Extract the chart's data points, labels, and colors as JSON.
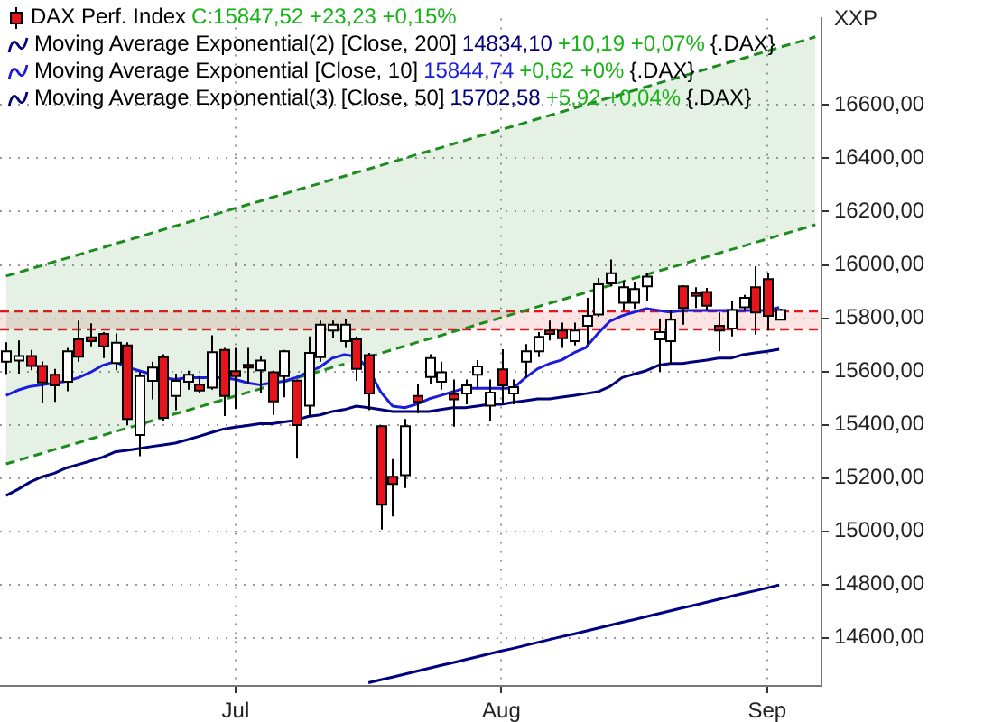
{
  "chart_data": {
    "type": "candlestick",
    "ylabel": "XXP",
    "categories": [
      null,
      null,
      null,
      null,
      null,
      null,
      null,
      null,
      null,
      null,
      null,
      null,
      null,
      null,
      null,
      null,
      null,
      null,
      null,
      "Jul",
      null,
      null,
      null,
      null,
      null,
      null,
      null,
      null,
      null,
      null,
      null,
      null,
      null,
      null,
      null,
      null,
      null,
      null,
      null,
      null,
      null,
      "Aug",
      null,
      null,
      null,
      null,
      null,
      null,
      null,
      null,
      null,
      null,
      null,
      null,
      null,
      null,
      null,
      null,
      null,
      null,
      null,
      null,
      null,
      "Sep",
      null,
      null,
      null,
      null
    ],
    "series": [
      {
        "type": "candlestick",
        "name": "DAX Perf. Index",
        "color": "#e8141c",
        "colors": [
          "#ffffff",
          "#ffffff",
          "#e8141c",
          "#e8141c",
          "#e8141c",
          "#ffffff",
          "#e8141c",
          "#e8141c",
          "#e8141c",
          "#ffffff",
          "#e8141c",
          "#ffffff",
          "#ffffff",
          "#e8141c",
          "#ffffff",
          "#ffffff",
          "#e8141c",
          "#ffffff",
          "#e8141c",
          "#e8141c",
          "#e8141c",
          "#ffffff",
          "#e8141c",
          "#ffffff",
          "#e8141c",
          "#ffffff",
          "#ffffff",
          "#ffffff",
          "#ffffff",
          "#e8141c",
          "#e8141c",
          "#e8141c",
          "#e8141c",
          "#ffffff",
          "#e8141c",
          "#ffffff",
          "#ffffff",
          "#e8141c",
          "#ffffff",
          "#ffffff",
          "#ffffff",
          "#e8141c",
          "#ffffff",
          "#ffffff",
          "#ffffff",
          "#e8141c",
          "#e8141c",
          "#ffffff",
          "#ffffff",
          "#ffffff",
          "#ffffff",
          "#ffffff",
          "#ffffff",
          "#ffffff",
          "#ffffff",
          "#ffffff",
          "#e8141c",
          "#e8141c",
          "#e8141c",
          "#e8141c",
          "#ffffff",
          "#ffffff",
          "#e8141c",
          "#e8141c",
          "#ffffff",
          null,
          null,
          null
        ],
        "ohlc": [
          [
            15637,
            15710,
            15590,
            15676
          ],
          [
            15641,
            15716,
            15592,
            15658
          ],
          [
            15658,
            15681,
            15605,
            15621
          ],
          [
            15621,
            15638,
            15482,
            15559
          ],
          [
            15588,
            15610,
            15486,
            15548
          ],
          [
            15561,
            15688,
            15526,
            15676
          ],
          [
            15721,
            15791,
            15637,
            15655
          ],
          [
            15728,
            15781,
            15694,
            15714
          ],
          [
            15741,
            15748,
            15650,
            15694
          ],
          [
            15632,
            15743,
            15605,
            15708
          ],
          [
            15698,
            15710,
            15399,
            15422
          ],
          [
            15362,
            15599,
            15282,
            15583
          ],
          [
            15565,
            15637,
            15495,
            15615
          ],
          [
            15654,
            15665,
            15415,
            15426
          ],
          [
            15508,
            15592,
            15455,
            15565
          ],
          [
            15561,
            15603,
            15532,
            15588
          ],
          [
            15550,
            15583,
            15521,
            15528
          ],
          [
            15539,
            15736,
            15532,
            15672
          ],
          [
            15681,
            15688,
            15433,
            15508
          ],
          [
            15601,
            15688,
            15459,
            15583
          ],
          [
            15625,
            15688,
            15555,
            15621
          ],
          [
            15605,
            15658,
            15517,
            15641
          ],
          [
            15597,
            15603,
            15437,
            15488
          ],
          [
            15583,
            15681,
            15503,
            15676
          ],
          [
            15566,
            15570,
            15273,
            15399
          ],
          [
            15472,
            15732,
            15433,
            15670
          ],
          [
            15654,
            15791,
            15637,
            15776
          ],
          [
            15754,
            15791,
            15725,
            15776
          ],
          [
            15714,
            15796,
            15688,
            15776
          ],
          [
            15721,
            15732,
            15565,
            15610
          ],
          [
            15661,
            15670,
            15455,
            15517
          ],
          [
            15395,
            15399,
            15007,
            15100
          ],
          [
            15205,
            15271,
            15056,
            15178
          ],
          [
            15211,
            15422,
            15163,
            15395
          ],
          [
            15508,
            15555,
            15444,
            15486
          ],
          [
            15579,
            15665,
            15555,
            15650
          ],
          [
            15561,
            15637,
            15532,
            15597
          ],
          [
            15515,
            15570,
            15393,
            15495
          ],
          [
            15517,
            15570,
            15477,
            15548
          ],
          [
            15588,
            15643,
            15539,
            15619
          ],
          [
            15472,
            15570,
            15415,
            15521
          ],
          [
            15608,
            15683,
            15477,
            15548
          ],
          [
            15517,
            15570,
            15477,
            15541
          ],
          [
            15637,
            15703,
            15577,
            15676
          ],
          [
            15676,
            15748,
            15654,
            15730
          ],
          [
            15754,
            15791,
            15716,
            15741
          ],
          [
            15754,
            15783,
            15688,
            15725
          ],
          [
            15714,
            15783,
            15698,
            15754
          ],
          [
            15771,
            15876,
            15703,
            15809
          ],
          [
            15814,
            15951,
            15805,
            15927
          ],
          [
            15931,
            16020,
            15920,
            15969
          ],
          [
            15858,
            15942,
            15831,
            15916
          ],
          [
            15858,
            15937,
            15836,
            15909
          ],
          [
            15920,
            15969,
            15864,
            15956
          ],
          [
            15721,
            15798,
            15599,
            15748
          ],
          [
            15714,
            15831,
            15628,
            15794
          ],
          [
            15920,
            15924,
            15776,
            15838
          ],
          [
            15894,
            15916,
            15838,
            15887
          ],
          [
            15898,
            15914,
            15831,
            15847
          ],
          [
            15771,
            15821,
            15676,
            15754
          ],
          [
            15761,
            15864,
            15732,
            15831
          ],
          [
            15841,
            15887,
            15831,
            15876
          ],
          [
            15916,
            15995,
            15738,
            15821
          ],
          [
            15947,
            15969,
            15754,
            15809
          ],
          [
            15794,
            15836,
            15792,
            15831
          ],
          null,
          null,
          null
        ]
      },
      {
        "type": "line",
        "name": "Moving Average Exponential(2) [Close, 200]",
        "color": "#000080",
        "values": [
          null,
          null,
          null,
          null,
          null,
          null,
          null,
          null,
          null,
          null,
          null,
          null,
          null,
          null,
          null,
          null,
          null,
          null,
          null,
          null,
          null,
          null,
          null,
          null,
          null,
          null,
          null,
          null,
          null,
          null,
          14432,
          14443,
          14453,
          14464,
          14475,
          14486,
          14497,
          14507,
          14518,
          14529,
          14540,
          14551,
          14561,
          14572,
          14583,
          14594,
          14605,
          14615,
          14626,
          14637,
          14648,
          14659,
          14669,
          14680,
          14691,
          14702,
          14713,
          14723,
          14734,
          14745,
          14756,
          14767,
          14777,
          14788,
          14799,
          null,
          null,
          null
        ]
      },
      {
        "type": "line",
        "name": "Moving Average Exponential [Close, 10]",
        "color": "#1c1ce0",
        "values": [
          15510,
          15530,
          15544,
          15550,
          15557,
          15563,
          15577,
          15597,
          15623,
          15637,
          15617,
          15603,
          15590,
          15577,
          15570,
          15577,
          15577,
          15577,
          15577,
          15570,
          15557,
          15550,
          15557,
          15563,
          15577,
          15597,
          15617,
          15650,
          15663,
          15656,
          15610,
          15524,
          15470,
          15464,
          15477,
          15497,
          15510,
          15524,
          15537,
          15537,
          15537,
          15537,
          15537,
          15577,
          15610,
          15630,
          15643,
          15670,
          15690,
          15743,
          15789,
          15809,
          15823,
          15836,
          15829,
          15823,
          15829,
          15829,
          15829,
          15829,
          15829,
          15829,
          15829,
          15829,
          15840,
          null,
          null,
          null
        ]
      },
      {
        "type": "line",
        "name": "Moving Average Exponential(3) [Close, 50]",
        "color": "#00007a",
        "values": [
          15134,
          15158,
          15185,
          15205,
          15218,
          15238,
          15251,
          15264,
          15278,
          15298,
          15304,
          15311,
          15318,
          15324,
          15331,
          15344,
          15357,
          15371,
          15384,
          15391,
          15397,
          15404,
          15404,
          15411,
          15417,
          15431,
          15437,
          15450,
          15457,
          15470,
          15464,
          15457,
          15450,
          15450,
          15450,
          15450,
          15457,
          15464,
          15464,
          15470,
          15477,
          15477,
          15484,
          15490,
          15497,
          15497,
          15504,
          15510,
          15517,
          15524,
          15544,
          15577,
          15590,
          15603,
          15623,
          15630,
          15630,
          15637,
          15643,
          15650,
          15650,
          15663,
          15670,
          15676,
          15683,
          null,
          null,
          null
        ]
      },
      {
        "type": "line",
        "color": "#1e8c1e",
        "line_style": "dashed",
        "lower": [
          15253,
          15266,
          15280,
          15293,
          15307,
          15320,
          15333,
          15347,
          15360,
          15374,
          15387,
          15400,
          15414,
          15427,
          15441,
          15454,
          15467,
          15481,
          15494,
          15508,
          15521,
          15534,
          15548,
          15561,
          15575,
          15588,
          15601,
          15615,
          15628,
          15642,
          15655,
          15668,
          15682,
          15695,
          15709,
          15722,
          15735,
          15749,
          15762,
          15776,
          15789,
          15802,
          15816,
          15829,
          15843,
          15856,
          15869,
          15883,
          15896,
          15910,
          15923,
          15936,
          15950,
          15963,
          15977,
          15990,
          16003,
          16017,
          16030,
          16044,
          16057,
          16070,
          16084,
          16097,
          16111,
          16124,
          16137,
          16151
        ],
        "upper": [
          15958,
          15971,
          15985,
          15998,
          16012,
          16025,
          16038,
          16052,
          16065,
          16079,
          16092,
          16105,
          16119,
          16132,
          16146,
          16159,
          16172,
          16186,
          16199,
          16213,
          16226,
          16239,
          16253,
          16266,
          16280,
          16293,
          16306,
          16320,
          16333,
          16347,
          16360,
          16373,
          16387,
          16400,
          16414,
          16427,
          16440,
          16454,
          16467,
          16481,
          16494,
          16507,
          16521,
          16534,
          16548,
          16561,
          16574,
          16588,
          16601,
          16615,
          16628,
          16641,
          16655,
          16668,
          16682,
          16695,
          16708,
          16722,
          16735,
          16749,
          16762,
          16775,
          16789,
          16802,
          16816,
          16829,
          16842,
          16856
        ],
        "values": [
          15958,
          15971,
          15985,
          15998,
          16012,
          16025,
          16038,
          16052,
          16065,
          16079,
          16092,
          16105,
          16119,
          16132,
          16146,
          16159,
          16172,
          16186,
          16199,
          16213,
          16226,
          16239,
          16253,
          16266,
          16280,
          16293,
          16306,
          16320,
          16333,
          16347,
          16360,
          16373,
          16387,
          16400,
          16414,
          16427,
          16440,
          16454,
          16467,
          16481,
          16494,
          16507,
          16521,
          16534,
          16548,
          16561,
          16574,
          16588,
          16601,
          16615,
          16628,
          16641,
          16655,
          16668,
          16682,
          16695,
          16708,
          16722,
          16735,
          16749,
          16762,
          16775,
          16789,
          16802,
          16816,
          16829,
          16842,
          16856
        ]
      },
      {
        "type": "line",
        "color": "#1e8c1e",
        "line_style": "dashed",
        "values": [
          15253,
          15266,
          15280,
          15293,
          15307,
          15320,
          15333,
          15347,
          15360,
          15374,
          15387,
          15400,
          15414,
          15427,
          15441,
          15454,
          15467,
          15481,
          15494,
          15508,
          15521,
          15534,
          15548,
          15561,
          15575,
          15588,
          15601,
          15615,
          15628,
          null,
          15655,
          15668,
          15682,
          15695,
          15709,
          15722,
          15735,
          15749,
          15762,
          15776,
          15789,
          15802,
          15816,
          15829,
          15843,
          15856,
          15869,
          15883,
          15896,
          15910,
          15923,
          15936,
          15950,
          15963,
          15977,
          15990,
          16003,
          16017,
          16030,
          16044,
          16057,
          16070,
          16084,
          16097,
          16111,
          16124,
          16137,
          16151
        ]
      }
    ],
    "ylim": [
      14420,
      16925
    ],
    "yticks": [
      {
        "value": 14600,
        "label": "14600,00"
      },
      {
        "value": 14800,
        "label": "14800,00"
      },
      {
        "value": 15000,
        "label": "15000,00"
      },
      {
        "value": 15200,
        "label": "15200,00"
      },
      {
        "value": 15400,
        "label": "15400,00"
      },
      {
        "value": 15600,
        "label": "15600,00"
      },
      {
        "value": 15800,
        "label": "15800,00"
      },
      {
        "value": 16000,
        "label": "16000,00"
      },
      {
        "value": 16200,
        "label": "16200,00"
      },
      {
        "value": 16400,
        "label": "16400,00"
      },
      {
        "value": 16600,
        "label": "16600,00"
      }
    ],
    "bands": [
      {
        "axis": "y",
        "from": 15758,
        "to": 15825,
        "color": "#f8d8d8"
      }
    ],
    "ref_lines": [
      {
        "axis": "y",
        "value": 15825,
        "color": "#e8141c",
        "line_style": "dashed"
      },
      {
        "axis": "y",
        "value": 15758,
        "color": "#e8141c",
        "line_style": "dashed"
      }
    ],
    "annotations": [
      "C:15847,52 +23,23 +0,15%",
      "14834,10",
      "+10,19 +0,07%",
      "{.DAX}",
      "15844,74",
      "+0,62 +0%",
      "{.DAX}",
      "15702,58",
      "+5,92 +0,04%",
      "{.DAX}"
    ],
    "grid": true,
    "legend": "top left"
  }
}
